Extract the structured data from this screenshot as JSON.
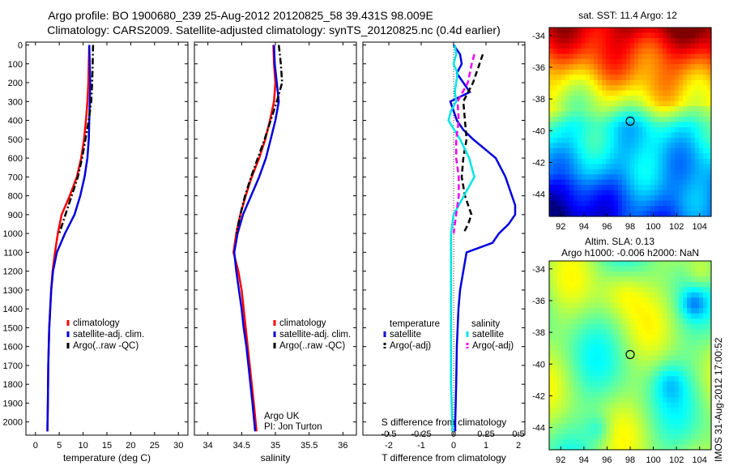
{
  "header": {
    "title_line1": "Argo profile: BO 1900680_239 25-Aug-2012 20120825_58 39.431S 98.009E",
    "title_line2": "Climatology: CARS2009. Satellite-adjusted climatology: synTS_20120825.nc (0.4d earlier)"
  },
  "colors": {
    "climatology": "#ff0000",
    "satellite": "#0000dd",
    "argo": "#000000",
    "salinity_satellite": "#00e5e5",
    "salinity_argo": "#ee00ee"
  },
  "chart_data": [
    {
      "type": "line",
      "name": "temperature-profile",
      "xlabel": "temperature (deg C)",
      "x_ticks": [
        "0",
        "5",
        "10",
        "15",
        "20",
        "25",
        "30"
      ],
      "xlim": [
        -2,
        32
      ],
      "y_ticks": [
        "0",
        "100",
        "200",
        "300",
        "400",
        "500",
        "600",
        "700",
        "800",
        "900",
        "1000",
        "1100",
        "1200",
        "1300",
        "1400",
        "1500",
        "1600",
        "1700",
        "1800",
        "1900",
        "2000"
      ],
      "ylim": [
        2070,
        -15
      ],
      "legend": [
        "climatology",
        "satellite-adj. clim.",
        "Argo(..raw -QC)"
      ],
      "series": [
        {
          "name": "climatology",
          "style": "solid",
          "depth": [
            0,
            100,
            200,
            300,
            400,
            500,
            600,
            700,
            800,
            900,
            1000,
            1100,
            1200,
            1300,
            1400,
            1500,
            1700,
            1900,
            2050
          ],
          "values": [
            11.3,
            11.2,
            11.1,
            10.9,
            10.6,
            10.2,
            9.6,
            8.7,
            7.2,
            5.5,
            4.7,
            4.1,
            3.6,
            3.3,
            3.1,
            2.9,
            2.7,
            2.6,
            2.5
          ]
        },
        {
          "name": "satellite-adj. clim.",
          "style": "solid",
          "depth": [
            0,
            100,
            200,
            300,
            400,
            500,
            600,
            700,
            800,
            900,
            1000,
            1100,
            1200,
            1300,
            1400,
            1500,
            1700,
            1900,
            2050
          ],
          "values": [
            11.3,
            11.4,
            11.5,
            11.4,
            11.3,
            11.2,
            10.9,
            10.3,
            9.4,
            8.2,
            6.2,
            4.5,
            3.7,
            3.3,
            3.1,
            2.9,
            2.7,
            2.6,
            2.5
          ]
        },
        {
          "name": "Argo(..raw -QC)",
          "style": "dashdot",
          "depth": [
            0,
            100,
            200,
            300,
            400,
            500,
            600,
            700,
            800,
            900,
            1000
          ],
          "values": [
            12.1,
            12.0,
            11.9,
            11.7,
            11.2,
            10.5,
            9.8,
            8.9,
            7.6,
            6.3,
            5.0
          ]
        }
      ]
    },
    {
      "type": "line",
      "name": "salinity-profile",
      "xlabel": "salinity",
      "x_ticks": [
        "34",
        "34.5",
        "35",
        "35.5",
        "36"
      ],
      "xlim": [
        33.8,
        36.2
      ],
      "ylim": [
        2070,
        -15
      ],
      "legend": [
        "climatology",
        "satellite-adj. clim.",
        "Argo(..raw -QC)"
      ],
      "annotation": [
        "Argo UK",
        "PI: Jon Turton"
      ],
      "series": [
        {
          "name": "climatology",
          "style": "solid",
          "depth": [
            0,
            100,
            200,
            300,
            400,
            500,
            600,
            700,
            800,
            900,
            1000,
            1100,
            1200,
            1300,
            1400,
            1500,
            1600,
            1700,
            1800,
            1900,
            2050
          ],
          "values": [
            34.97,
            34.98,
            35.0,
            34.98,
            34.92,
            34.85,
            34.76,
            34.65,
            34.56,
            34.48,
            34.42,
            34.38,
            34.45,
            34.5,
            34.53,
            34.56,
            34.59,
            34.62,
            34.65,
            34.68,
            34.72
          ]
        },
        {
          "name": "satellite-adj. clim.",
          "style": "solid",
          "depth": [
            0,
            100,
            200,
            300,
            400,
            500,
            600,
            700,
            800,
            900,
            1000,
            1100,
            1200,
            1300,
            1400,
            1500,
            1600,
            1700,
            1800,
            1900,
            2050
          ],
          "values": [
            34.98,
            34.99,
            35.02,
            35.05,
            35.0,
            34.93,
            34.86,
            34.76,
            34.64,
            34.52,
            34.44,
            34.39,
            34.42,
            34.46,
            34.5,
            34.53,
            34.57,
            34.6,
            34.63,
            34.66,
            34.7
          ]
        },
        {
          "name": "Argo(..raw -QC)",
          "style": "dashdot",
          "depth": [
            0,
            100,
            200,
            300,
            400,
            500,
            600,
            700,
            800,
            900,
            1000
          ],
          "values": [
            35.05,
            35.08,
            35.1,
            35.02,
            34.93,
            34.84,
            34.74,
            34.64,
            34.55,
            34.48,
            34.42
          ]
        }
      ]
    },
    {
      "type": "line",
      "name": "difference-profile",
      "xlabel": "T difference from climatology",
      "xlabel_top": "S difference from climatology",
      "x_ticks": [
        "-2",
        "-1",
        "0",
        "1",
        "2"
      ],
      "x_ticks_top": [
        "-0.5",
        "-0.25",
        "0",
        "0.25",
        "0.5"
      ],
      "xlim": [
        -2.8,
        2.2
      ],
      "ylim": [
        2070,
        -15
      ],
      "legend": {
        "temperature": {
          "heading": "temperature",
          "entries": [
            "satellite",
            "Argo(-adj)"
          ]
        },
        "salinity": {
          "heading": "salinity",
          "entries": [
            "satellite",
            "Argo(-adj)"
          ]
        }
      },
      "series": [
        {
          "name": "temperature satellite",
          "style": "solid",
          "depth": [
            0,
            50,
            100,
            150,
            200,
            250,
            300,
            350,
            400,
            450,
            500,
            600,
            700,
            800,
            850,
            900,
            950,
            1000,
            1050,
            1100,
            1200,
            1300,
            1400,
            1600,
            1800,
            2000,
            2050
          ],
          "values": [
            0.0,
            0.2,
            0.25,
            0.1,
            0.3,
            0.5,
            -0.1,
            0.0,
            0.1,
            0.3,
            0.6,
            1.3,
            1.6,
            1.8,
            1.9,
            1.9,
            1.7,
            1.4,
            1.2,
            0.4,
            0.3,
            0.2,
            0.15,
            0.1,
            0.08,
            0.05,
            0.05
          ]
        },
        {
          "name": "temperature Argo(-adj)",
          "style": "dashed",
          "depth": [
            50,
            100,
            200,
            300,
            400,
            500,
            600,
            700,
            800,
            900,
            950,
            1000
          ],
          "values": [
            0.9,
            0.8,
            0.6,
            0.3,
            0.35,
            0.4,
            0.3,
            0.25,
            0.35,
            0.55,
            0.45,
            0.3
          ]
        },
        {
          "name": "salinity satellite",
          "style": "solid",
          "depth": [
            0,
            50,
            100,
            150,
            200,
            250,
            300,
            350,
            400,
            500,
            600,
            700,
            800,
            900,
            1000,
            1100,
            1200,
            1400,
            1600,
            1800,
            2000,
            2050
          ],
          "values": [
            0.01,
            0.02,
            0.0,
            0.03,
            0.02,
            0.01,
            0.02,
            -0.02,
            -0.04,
            0.05,
            0.12,
            0.16,
            0.08,
            0.0,
            -0.02,
            -0.02,
            -0.02,
            -0.02,
            -0.02,
            -0.02,
            -0.01,
            -0.01
          ]
        },
        {
          "name": "salinity Argo(-adj)",
          "style": "dashed",
          "depth": [
            50,
            100,
            200,
            300,
            400,
            500,
            600,
            700,
            800,
            900,
            1000
          ],
          "values": [
            0.16,
            0.14,
            0.11,
            0.03,
            0.04,
            0.02,
            0.02,
            0.04,
            0.04,
            0.02,
            0.0
          ]
        }
      ]
    },
    {
      "type": "heatmap",
      "name": "sst-map",
      "title": "sat. SST: 11.4 Argo: 12",
      "x_ticks": [
        "92",
        "94",
        "96",
        "98",
        "100",
        "102",
        "104"
      ],
      "y_ticks": [
        "-34",
        "-36",
        "-38",
        "-40",
        "-42",
        "-44"
      ],
      "xlim": [
        91,
        105
      ],
      "ylim": [
        -45.4,
        -33.5
      ],
      "marker": {
        "lon": 98.0,
        "lat": -39.4
      }
    },
    {
      "type": "heatmap",
      "name": "sla-map",
      "title_line1": "Altim. SLA: 0.13",
      "title_line2": "Argo h1000: -0.006 h2000: NaN",
      "x_ticks": [
        "92",
        "94",
        "96",
        "98",
        "100",
        "102",
        "104"
      ],
      "y_ticks": [
        "-34",
        "-36",
        "-38",
        "-40",
        "-42",
        "-44"
      ],
      "xlim": [
        91,
        105
      ],
      "ylim": [
        -45.4,
        -33.5
      ],
      "marker": {
        "lon": 98.0,
        "lat": -39.4
      }
    }
  ],
  "footer": {
    "stamp": "IMOS 31-Aug-2012 17:00:52"
  }
}
